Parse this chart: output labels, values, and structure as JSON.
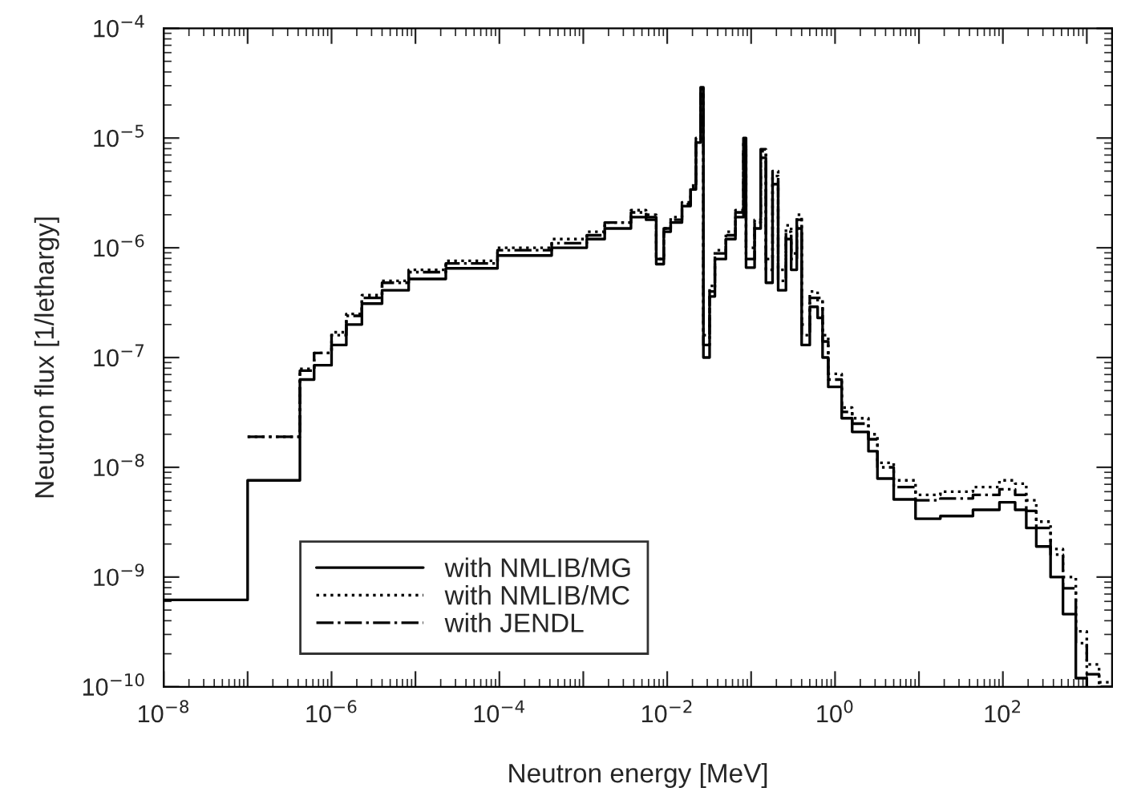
{
  "chart_data": {
    "type": "step",
    "xlabel": "Neutron energy [MeV]",
    "ylabel": "Neutron flux [1/lethargy]",
    "log": "xy",
    "grid": false,
    "legend": "bottom left",
    "marker": "none",
    "xlim": [
      1e-08,
      2000
    ],
    "ylim": [
      1e-10,
      0.0001
    ],
    "xticks": [
      {
        "value": 1e-08,
        "label": "10$^{−8}$"
      },
      {
        "value": 1e-07,
        "label": null
      },
      {
        "value": 1e-06,
        "label": "10$^{−6}$"
      },
      {
        "value": 1e-05,
        "label": null
      },
      {
        "value": 0.0001,
        "label": "10$^{−4}$"
      },
      {
        "value": 0.001,
        "label": null
      },
      {
        "value": 0.01,
        "label": "10$^{−2}$"
      },
      {
        "value": 0.1,
        "label": null
      },
      {
        "value": 1,
        "label": "10$^{0}$"
      },
      {
        "value": 10,
        "label": null
      },
      {
        "value": 100,
        "label": "10$^{2}$"
      },
      {
        "value": 1000,
        "label": null
      }
    ],
    "yticks": [
      {
        "value": 1e-10,
        "label": "10$^{−10}$"
      },
      {
        "value": 1e-09,
        "label": "10$^{−9}$"
      },
      {
        "value": 1e-08,
        "label": "10$^{−8}$"
      },
      {
        "value": 1e-07,
        "label": "10$^{−7}$"
      },
      {
        "value": 1e-06,
        "label": "10$^{−6}$"
      },
      {
        "value": 1e-05,
        "label": "10$^{−5}$"
      },
      {
        "value": 0.0001,
        "label": "10$^{−4}$"
      }
    ],
    "series": [
      {
        "name": "with NMLIB/MG",
        "color": "#000000",
        "line_style": "solid",
        "x": [
          1e-08,
          1e-07,
          4.2e-07,
          6.2e-07,
          1e-06,
          1.5e-06,
          2.3e-06,
          4e-06,
          8.3e-06,
          2.3e-05,
          9.5e-05,
          0.00042,
          0.0011,
          0.0018,
          0.0037,
          0.0056,
          0.0074,
          0.0091,
          0.011,
          0.015,
          0.019,
          0.022,
          0.025,
          0.027,
          0.032,
          0.037,
          0.05,
          0.065,
          0.081,
          0.087,
          0.11,
          0.13,
          0.15,
          0.18,
          0.21,
          0.26,
          0.3,
          0.35,
          0.4,
          0.5,
          0.62,
          0.71,
          0.83,
          1.2,
          1.6,
          2.5,
          3.2,
          5.0,
          9.1,
          18,
          44,
          91,
          140,
          190,
          250,
          370,
          520,
          740,
          1000
        ],
        "values": [
          6.2e-10,
          7.6e-09,
          6.3e-08,
          8.5e-08,
          1.3e-07,
          2e-07,
          3.1e-07,
          4.1e-07,
          5.2e-07,
          6.5e-07,
          8.5e-07,
          1e-06,
          1.2e-06,
          1.5e-06,
          1.9e-06,
          1.8e-06,
          7.1e-07,
          1.4e-06,
          1.7e-06,
          2.4e-06,
          3.4e-06,
          9.1e-06,
          2.9e-05,
          1e-07,
          3.6e-07,
          7.9e-07,
          1.2e-06,
          1.9e-06,
          1e-05,
          6.6e-07,
          1.5e-06,
          6.6e-06,
          4.8e-07,
          3.8e-06,
          4.1e-07,
          1.2e-06,
          6.3e-07,
          1.5e-06,
          1.3e-07,
          2.9e-07,
          2.3e-07,
          1e-07,
          5.4e-08,
          2.8e-08,
          2.1e-08,
          1.4e-08,
          7.9e-09,
          5.1e-09,
          3.4e-09,
          3.6e-09,
          4.1e-09,
          4.8e-09,
          4.1e-09,
          2.8e-09,
          1.9e-09,
          1e-09,
          4.6e-10,
          1.2e-10,
          1e-10
        ]
      },
      {
        "name": "with NMLIB/MC",
        "color": "#000000",
        "line_style": "dotted",
        "x": [
          1e-07,
          4.2e-07,
          6.2e-07,
          1e-06,
          1.5e-06,
          2.3e-06,
          4e-06,
          8.3e-06,
          2.3e-05,
          9.5e-05,
          0.00042,
          0.0011,
          0.0018,
          0.0037,
          0.0056,
          0.0074,
          0.0091,
          0.011,
          0.015,
          0.019,
          0.022,
          0.025,
          0.027,
          0.032,
          0.037,
          0.05,
          0.065,
          0.081,
          0.087,
          0.11,
          0.13,
          0.15,
          0.18,
          0.21,
          0.26,
          0.3,
          0.35,
          0.4,
          0.5,
          0.62,
          0.71,
          0.83,
          1.2,
          1.6,
          2.5,
          3.2,
          5.0,
          9.1,
          18,
          44,
          91,
          140,
          190,
          250,
          370,
          520,
          740,
          1000,
          1400,
          2000
        ],
        "values": [
          1.9e-08,
          7.9e-08,
          1.1e-07,
          1.7e-07,
          2.5e-07,
          3.7e-07,
          5e-07,
          6.3e-07,
          7.6e-07,
          1e-06,
          1.2e-06,
          1.4e-06,
          1.7e-06,
          2.2e-06,
          2e-06,
          7.9e-07,
          1.5e-06,
          1.9e-06,
          2.6e-06,
          3.7e-06,
          1e-05,
          2.8e-05,
          1.6e-07,
          4.5e-07,
          9.5e-07,
          1.4e-06,
          2.2e-06,
          7.9e-06,
          1e-06,
          1.8e-06,
          7.6e-06,
          7.9e-07,
          4.5e-06,
          6.3e-07,
          1.6e-06,
          8.9e-07,
          2e-06,
          2e-07,
          4e-07,
          3.2e-07,
          1.6e-07,
          7.1e-08,
          3.5e-08,
          2.8e-08,
          2e-08,
          1.1e-08,
          7.6e-09,
          5.6e-09,
          6e-09,
          6.6e-09,
          7.6e-09,
          7.1e-09,
          5e-09,
          3.2e-09,
          1.8e-09,
          1e-09,
          3.2e-10,
          1.6e-10,
          1.1e-10,
          1.1e-10
        ]
      },
      {
        "name": "with JENDL",
        "color": "#000000",
        "line_style": "dashdot",
        "x": [
          1e-07,
          4.2e-07,
          6.2e-07,
          1e-06,
          1.5e-06,
          2.3e-06,
          4e-06,
          8.3e-06,
          2.3e-05,
          9.5e-05,
          0.00042,
          0.0011,
          0.0018,
          0.0037,
          0.0056,
          0.0074,
          0.0091,
          0.011,
          0.015,
          0.019,
          0.022,
          0.025,
          0.027,
          0.032,
          0.037,
          0.05,
          0.065,
          0.081,
          0.087,
          0.11,
          0.13,
          0.15,
          0.18,
          0.21,
          0.26,
          0.3,
          0.35,
          0.4,
          0.5,
          0.62,
          0.71,
          0.83,
          1.2,
          1.6,
          2.5,
          3.2,
          5.0,
          9.1,
          18,
          44,
          91,
          140,
          190,
          250,
          370,
          520,
          740,
          1000,
          1400,
          2000
        ],
        "values": [
          1.9e-08,
          7.6e-08,
          1.1e-07,
          1.6e-07,
          2.4e-07,
          3.5e-07,
          4.8e-07,
          6e-07,
          7.2e-07,
          9.5e-07,
          1.1e-06,
          1.3e-06,
          1.7e-06,
          2.1e-06,
          1.9e-06,
          7.9e-07,
          1.5e-06,
          1.8e-06,
          2.5e-06,
          3.5e-06,
          9.5e-06,
          2.5e-05,
          1.3e-07,
          4e-07,
          8.9e-07,
          1.3e-06,
          2.1e-06,
          8.9e-06,
          7.9e-07,
          1.7e-06,
          7.9e-06,
          6.3e-07,
          5e-06,
          5e-07,
          1.4e-06,
          7.9e-07,
          1.8e-06,
          1.6e-07,
          3.5e-07,
          3.5e-07,
          1.4e-07,
          6.3e-08,
          3.2e-08,
          2.5e-08,
          1.8e-08,
          1e-08,
          6.6e-09,
          5e-09,
          5.2e-09,
          5.6e-09,
          6.3e-09,
          5.6e-09,
          4e-09,
          2.8e-09,
          1.6e-09,
          7.9e-10,
          2.5e-10,
          1.3e-10,
          1e-10,
          1e-10
        ]
      }
    ]
  }
}
